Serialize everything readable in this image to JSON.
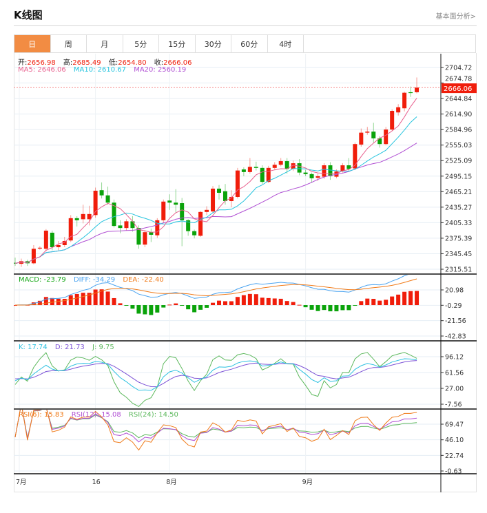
{
  "header": {
    "title": "K线图",
    "link": "基本面分析>"
  },
  "tabs": [
    "日",
    "周",
    "月",
    "5分",
    "15分",
    "30分",
    "60分",
    "4时"
  ],
  "active_tab": 0,
  "price_legend": {
    "open_label": "开:",
    "open": "2656.98",
    "high_label": "高:",
    "high": "2685.49",
    "low_label": "低:",
    "low": "2654.80",
    "close_label": "收:",
    "close": "2666.06",
    "ma5": "MA5: 2646.06",
    "ma10": "MA10: 2610.67",
    "ma20": "MA20: 2560.19"
  },
  "macd_legend": {
    "macd": "MACD: -23.79",
    "diff": "DIFF: -34.29",
    "dea": "DEA: -22.40"
  },
  "kdj_legend": {
    "k": "K: 17.74",
    "d": "D: 21.73",
    "j": "J: 9.75"
  },
  "rsi_legend": {
    "rsi6": "RSI(6): 15.83",
    "rsi12": "RSI(12): 15.08",
    "rsi24": "RSI(24): 14.50"
  },
  "current_price": "2666.06",
  "colors": {
    "up": "#f01d0b",
    "down": "#0aa30a",
    "ma5": "#e85f8d",
    "ma10": "#27c4de",
    "ma20": "#b04fd3",
    "diff": "#4aa3f0",
    "dea": "#f07a18",
    "k": "#2bc0e0",
    "d": "#7c52d6",
    "j": "#5cb85c",
    "rsi6": "#f07a18",
    "rsi12": "#b04fd3",
    "rsi24": "#5cb85c",
    "accent": "#f28c43"
  },
  "chart_data": {
    "type": "candlestick",
    "x_labels": [
      {
        "index": 0,
        "label": "7月"
      },
      {
        "index": 13,
        "label": "16"
      },
      {
        "index": 25,
        "label": "8月"
      },
      {
        "index": 47,
        "label": "9月"
      }
    ],
    "price_axis": {
      "ticks": [
        "2704.72",
        "2674.78",
        "2644.84",
        "2614.90",
        "2584.96",
        "2555.03",
        "2525.09",
        "2495.15",
        "2465.21",
        "2435.27",
        "2405.33",
        "2375.39",
        "2345.45",
        "2315.51"
      ],
      "range": [
        2315.51,
        2704.72
      ]
    },
    "macd_axis": {
      "ticks": [
        "20.98",
        "-0.29",
        "-21.56",
        "-42.83"
      ]
    },
    "kdj_axis": {
      "ticks": [
        "96.12",
        "61.56",
        "27.00",
        "-7.56"
      ]
    },
    "rsi_axis": {
      "ticks": [
        "69.47",
        "46.10",
        "22.74",
        "-0.63"
      ]
    },
    "ohlc": [
      [
        2328,
        2338,
        2322,
        2327
      ],
      [
        2326,
        2336,
        2320,
        2331
      ],
      [
        2331,
        2334,
        2322,
        2327
      ],
      [
        2327,
        2362,
        2325,
        2355
      ],
      [
        2356,
        2360,
        2353,
        2357
      ],
      [
        2355,
        2393,
        2350,
        2390
      ],
      [
        2386,
        2390,
        2352,
        2358
      ],
      [
        2358,
        2370,
        2352,
        2362
      ],
      [
        2362,
        2378,
        2358,
        2370
      ],
      [
        2371,
        2420,
        2368,
        2414
      ],
      [
        2414,
        2418,
        2398,
        2410
      ],
      [
        2412,
        2440,
        2404,
        2422
      ],
      [
        2412,
        2438,
        2400,
        2422
      ],
      [
        2420,
        2473,
        2415,
        2467
      ],
      [
        2468,
        2483,
        2452,
        2458
      ],
      [
        2458,
        2475,
        2440,
        2444
      ],
      [
        2444,
        2450,
        2396,
        2399
      ],
      [
        2400,
        2410,
        2385,
        2395
      ],
      [
        2395,
        2412,
        2390,
        2408
      ],
      [
        2408,
        2418,
        2388,
        2395
      ],
      [
        2395,
        2400,
        2355,
        2363
      ],
      [
        2363,
        2391,
        2358,
        2387
      ],
      [
        2387,
        2394,
        2368,
        2382
      ],
      [
        2381,
        2414,
        2376,
        2410
      ],
      [
        2410,
        2450,
        2405,
        2446
      ],
      [
        2448,
        2460,
        2430,
        2444
      ],
      [
        2444,
        2470,
        2425,
        2440
      ],
      [
        2443,
        2453,
        2360,
        2410
      ],
      [
        2410,
        2412,
        2380,
        2389
      ],
      [
        2389,
        2392,
        2375,
        2381
      ],
      [
        2380,
        2428,
        2378,
        2426
      ],
      [
        2426,
        2437,
        2420,
        2430
      ],
      [
        2427,
        2476,
        2425,
        2471
      ],
      [
        2471,
        2478,
        2450,
        2463
      ],
      [
        2466,
        2480,
        2440,
        2447
      ],
      [
        2447,
        2468,
        2435,
        2455
      ],
      [
        2455,
        2511,
        2452,
        2506
      ],
      [
        2508,
        2512,
        2495,
        2503
      ],
      [
        2503,
        2530,
        2500,
        2513
      ],
      [
        2513,
        2523,
        2506,
        2511
      ],
      [
        2511,
        2516,
        2480,
        2484
      ],
      [
        2484,
        2515,
        2482,
        2511
      ],
      [
        2511,
        2522,
        2508,
        2517
      ],
      [
        2517,
        2530,
        2514,
        2524
      ],
      [
        2524,
        2530,
        2500,
        2509
      ],
      [
        2509,
        2525,
        2505,
        2520
      ],
      [
        2520,
        2528,
        2497,
        2502
      ],
      [
        2502,
        2507,
        2495,
        2499
      ],
      [
        2499,
        2502,
        2482,
        2491
      ],
      [
        2492,
        2500,
        2486,
        2495
      ],
      [
        2494,
        2520,
        2490,
        2516
      ],
      [
        2516,
        2522,
        2488,
        2495
      ],
      [
        2494,
        2508,
        2491,
        2504
      ],
      [
        2505,
        2520,
        2502,
        2516
      ],
      [
        2516,
        2530,
        2505,
        2509
      ],
      [
        2510,
        2560,
        2507,
        2557
      ],
      [
        2556,
        2587,
        2552,
        2579
      ],
      [
        2579,
        2590,
        2575,
        2581
      ],
      [
        2581,
        2598,
        2560,
        2568
      ],
      [
        2568,
        2572,
        2550,
        2557
      ],
      [
        2557,
        2590,
        2555,
        2585
      ],
      [
        2585,
        2624,
        2583,
        2621
      ],
      [
        2618,
        2634,
        2612,
        2628
      ],
      [
        2626,
        2658,
        2620,
        2656
      ],
      [
        2657,
        2668,
        2648,
        2656
      ],
      [
        2656.98,
        2685.49,
        2654.8,
        2666.06
      ]
    ],
    "ohlc_order": [
      "open",
      "high",
      "low",
      "close"
    ]
  }
}
